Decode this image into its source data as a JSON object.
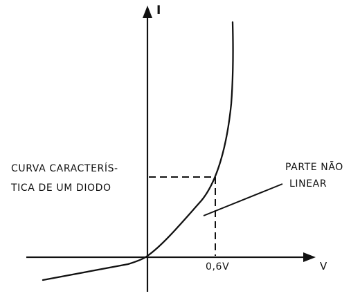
{
  "chart_data": {
    "type": "line",
    "y_axis_label": "I",
    "x_axis_label": "V",
    "x_tick_label": "0,6V",
    "x_marker": 0.6,
    "description_text": [
      "CURVA CARACTERÍS-",
      "TICA DE UM DIODO"
    ],
    "annotation_text": [
      "PARTE NÃO",
      "LINEAR"
    ],
    "colors": {
      "ink": "#111111",
      "background": "#ffffff"
    }
  }
}
